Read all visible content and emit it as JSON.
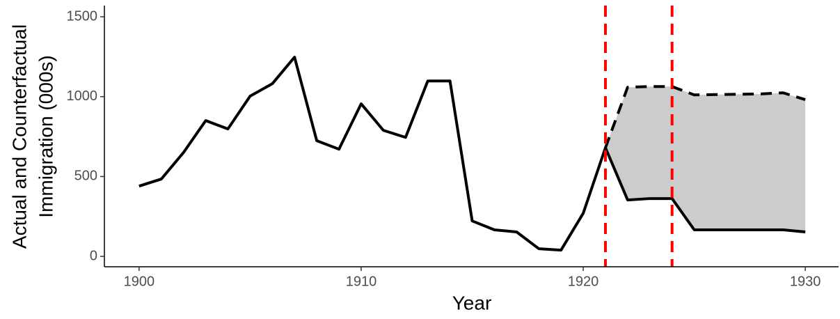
{
  "chart_data": {
    "type": "line",
    "xlabel": "Year",
    "ylabel": [
      "Actual and Counterfactual",
      "Immigration (000s)"
    ],
    "x": [
      1900,
      1901,
      1902,
      1903,
      1904,
      1905,
      1906,
      1907,
      1908,
      1909,
      1910,
      1911,
      1912,
      1913,
      1914,
      1915,
      1916,
      1917,
      1918,
      1919,
      1920,
      1921,
      1922,
      1923,
      1924,
      1925,
      1926,
      1927,
      1928,
      1929,
      1930
    ],
    "series": [
      {
        "color": "#000000",
        "dashed": false,
        "values": [
          440,
          484,
          650,
          850,
          798,
          1003,
          1081,
          1247,
          724,
          671,
          955,
          789,
          745,
          1098,
          1098,
          222,
          166,
          153,
          48,
          39,
          270,
          680,
          353,
          362,
          362,
          166,
          166,
          166,
          166,
          166,
          153
        ]
      },
      {
        "color": "#000000",
        "dashed": true,
        "values": [
          null,
          null,
          null,
          null,
          null,
          null,
          null,
          null,
          null,
          null,
          null,
          null,
          null,
          null,
          null,
          null,
          null,
          null,
          null,
          null,
          null,
          680,
          1059,
          1063,
          1063,
          1011,
          1013,
          1015,
          1017,
          1024,
          981
        ]
      }
    ],
    "fill_between": {
      "color": "#cccccc"
    },
    "vlines": [
      1921,
      1924
    ],
    "vline_color": "#ff0000",
    "xlim": [
      1898.5,
      1931.5
    ],
    "ylim": [
      -65,
      1570
    ],
    "xticks": [
      1900,
      1910,
      1920,
      1930
    ],
    "yticks": [
      0,
      500,
      1000,
      1500
    ]
  }
}
